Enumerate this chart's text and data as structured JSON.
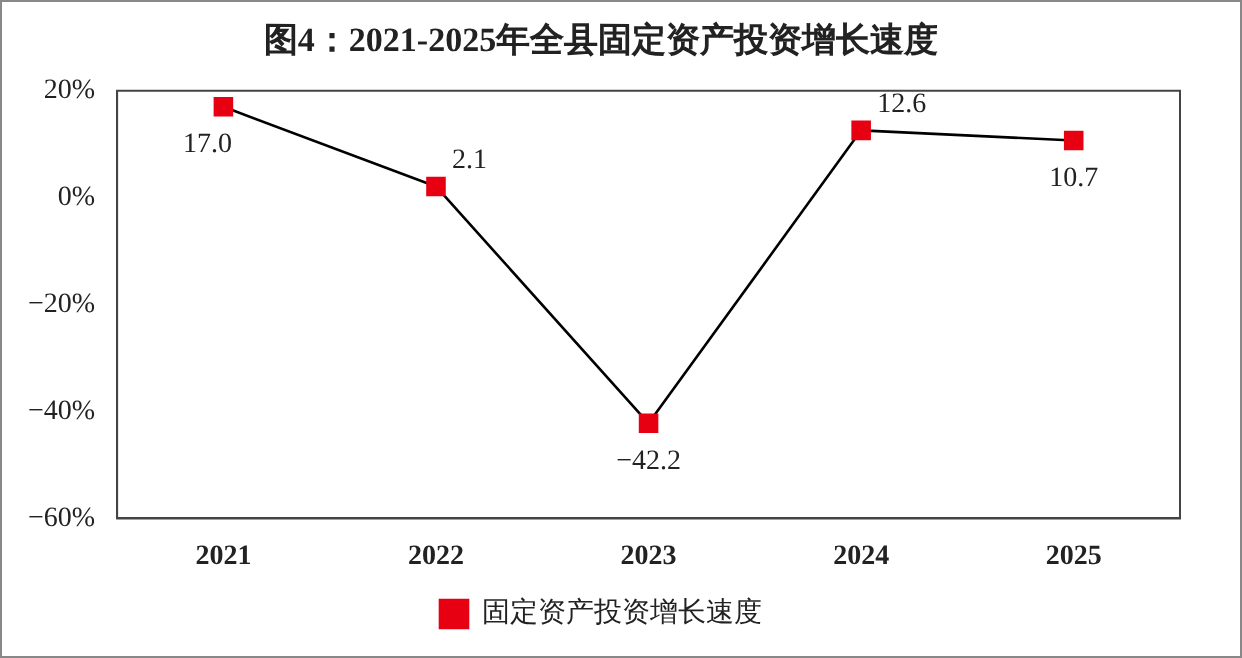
{
  "chart_data": {
    "type": "line",
    "title": "图4：2021-2025年全县固定资产投资增长速度",
    "categories": [
      "2021",
      "2022",
      "2023",
      "2024",
      "2025"
    ],
    "series": [
      {
        "name": "固定资产投资增长速度",
        "color": "#000000",
        "colors": [
          "#e60012",
          "#e60012",
          "#e60012",
          "#e60012",
          "#e60012"
        ],
        "values": [
          17.0,
          2.1,
          -42.2,
          12.6,
          10.7
        ],
        "value_labels": [
          "17.0",
          "2.1",
          "−42.2",
          "12.6",
          "10.7"
        ]
      }
    ],
    "ylim": [
      -60,
      20
    ],
    "yticks": [
      {
        "value": -60,
        "label": "−60%"
      },
      {
        "value": -40,
        "label": "−40%"
      },
      {
        "value": -20,
        "label": "−20%"
      },
      {
        "value": 0,
        "label": "0%"
      },
      {
        "value": 20,
        "label": "20%"
      }
    ],
    "grid": false,
    "legend": "bottom",
    "marker": "square",
    "line_style": "solid"
  }
}
